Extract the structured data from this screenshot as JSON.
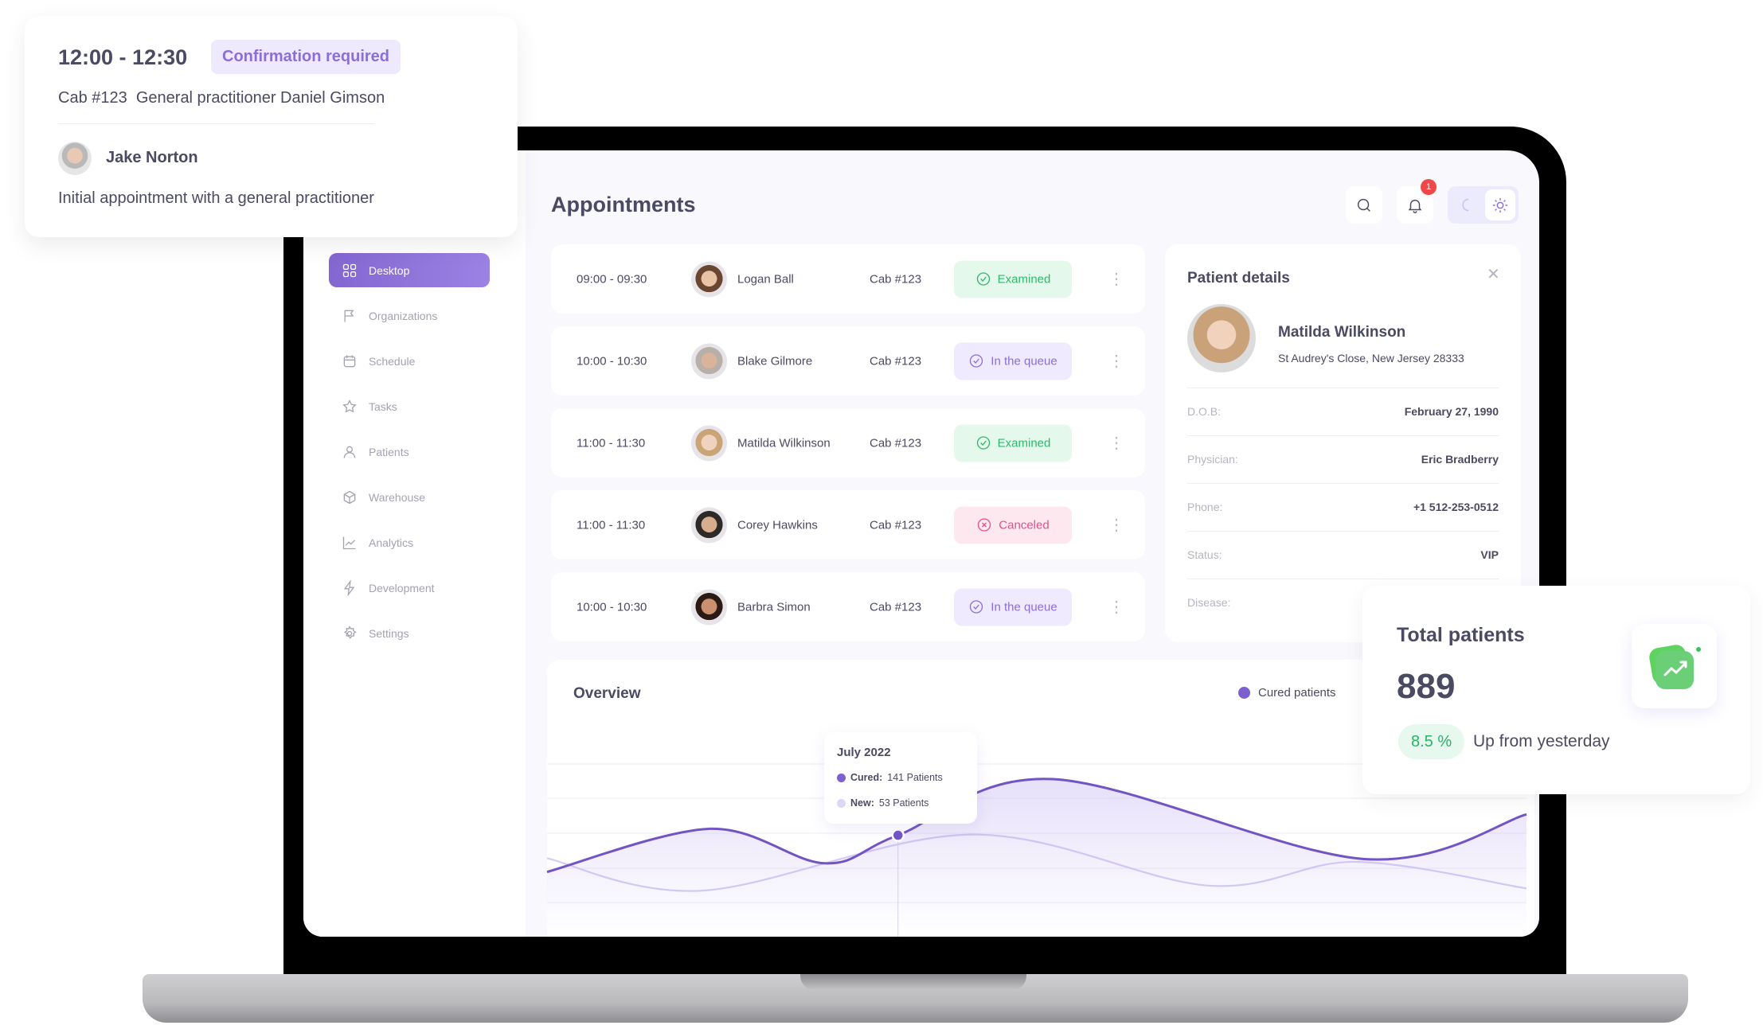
{
  "popup": {
    "time": "12:00 - 12:30",
    "status": "Confirmation required",
    "details": "Cab #123  General practitioner Daniel Gimson",
    "patient": "Jake Norton",
    "description": "Initial appointment with a general practitioner"
  },
  "sidebar": {
    "items": [
      {
        "label": "Desktop",
        "icon": "grid-icon",
        "active": true
      },
      {
        "label": "Organizations",
        "icon": "flag-icon"
      },
      {
        "label": "Schedule",
        "icon": "calendar-icon"
      },
      {
        "label": "Tasks",
        "icon": "star-icon"
      },
      {
        "label": "Patients",
        "icon": "user-icon"
      },
      {
        "label": "Warehouse",
        "icon": "box-icon"
      },
      {
        "label": "Analytics",
        "icon": "chart-icon"
      },
      {
        "label": "Development",
        "icon": "bolt-icon"
      },
      {
        "label": "Settings",
        "icon": "gear-icon"
      }
    ]
  },
  "header": {
    "title": "Appointments",
    "notification_count": "1"
  },
  "appointments": [
    {
      "time": "09:00 - 09:30",
      "name": "Logan Ball",
      "cab": "Cab #123",
      "status": "Examined",
      "kind": "examined"
    },
    {
      "time": "10:00 - 10:30",
      "name": "Blake Gilmore",
      "cab": "Cab #123",
      "status": "In the queue",
      "kind": "queue"
    },
    {
      "time": "11:00 - 11:30",
      "name": "Matilda Wilkinson",
      "cab": "Cab #123",
      "status": "Examined",
      "kind": "examined"
    },
    {
      "time": "11:00 - 11:30",
      "name": "Corey Hawkins",
      "cab": "Cab #123",
      "status": "Canceled",
      "kind": "canceled"
    },
    {
      "time": "10:00 - 10:30",
      "name": "Barbra Simon",
      "cab": "Cab #123",
      "status": "In the queue",
      "kind": "queue"
    }
  ],
  "status_colors": {
    "examined": {
      "fg": "#2fb86a",
      "bg": "#e5f8ec"
    },
    "queue": {
      "fg": "#8a6fd8",
      "bg": "#efeafd"
    },
    "canceled": {
      "fg": "#e5508a",
      "bg": "#fde8f0"
    }
  },
  "patient_details": {
    "title": "Patient details",
    "name": "Matilda Wilkinson",
    "address": "St Audrey's Close, New Jersey 28333",
    "fields": [
      {
        "label": "D.O.B:",
        "value": "February 27, 1990"
      },
      {
        "label": "Physician:",
        "value": "Eric Bradberry"
      },
      {
        "label": "Phone:",
        "value": "+1 512-253-0512"
      },
      {
        "label": "Status:",
        "value": "VIP"
      },
      {
        "label": "Disease:",
        "value": ""
      }
    ]
  },
  "overview": {
    "title": "Overview",
    "legend": "Cured patients",
    "tooltip": {
      "title": "July 2022",
      "cured_label": "Cured:",
      "cured_value": "141 Patients",
      "new_label": "New:",
      "new_value": "53 Patients"
    }
  },
  "chart_data": {
    "type": "area",
    "title": "Overview",
    "xlim": [
      0,
      12
    ],
    "ylim": [
      0,
      240
    ],
    "grid": true,
    "legend": "top-right",
    "highlight_x": 4.3,
    "series": [
      {
        "name": "Cured patients",
        "color": "#7254c4",
        "points": [
          [
            0,
            90
          ],
          [
            2,
            150
          ],
          [
            3.4,
            102
          ],
          [
            4.3,
            141
          ],
          [
            6.2,
            219
          ],
          [
            10,
            108
          ],
          [
            12,
            170
          ]
        ]
      },
      {
        "color": "#d6ccf5",
        "points": [
          [
            0,
            109
          ],
          [
            1.9,
            64
          ],
          [
            5.2,
            142
          ],
          [
            8.1,
            71
          ],
          [
            9.9,
            104
          ],
          [
            12,
            67
          ]
        ]
      }
    ]
  },
  "total_patients": {
    "title": "Total patients",
    "value": "889",
    "change": "8.5 %",
    "change_label": "Up from yesterday"
  }
}
